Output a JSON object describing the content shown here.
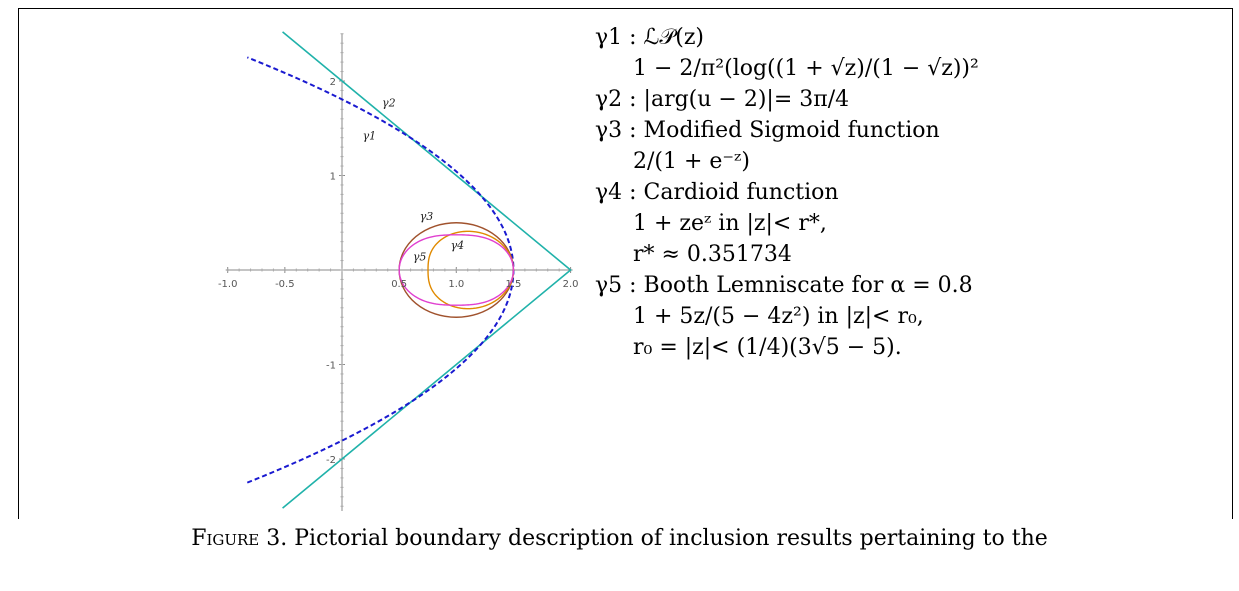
{
  "chart_data": {
    "type": "line",
    "xlim": [
      -1.0,
      2.0
    ],
    "ylim": [
      -2.5,
      2.5
    ],
    "x_ticks": [
      "-1.0",
      "-0.5",
      "0.5",
      "1.0",
      "1.5",
      "2.0"
    ],
    "x_tick_values": [
      -1.0,
      -0.5,
      0.5,
      1.0,
      1.5,
      2.0
    ],
    "y_ticks": [
      "2",
      "1",
      "-1",
      "-2"
    ],
    "y_tick_values": [
      2,
      1,
      -1,
      -2
    ],
    "grid": false,
    "series": [
      {
        "name": "γ1",
        "color": "#1a1ad0",
        "style": "dashed",
        "description_points": [
          [
            1.5,
            0
          ],
          [
            1.0,
            1.05
          ],
          [
            0.0,
            1.9
          ],
          [
            -0.6,
            2.18
          ],
          [
            1.0,
            -1.05
          ],
          [
            0.0,
            -1.9
          ],
          [
            -0.6,
            -2.18
          ]
        ]
      },
      {
        "name": "γ2",
        "color": "#20b2aa",
        "style": "solid",
        "points": [
          [
            -0.3,
            2.3
          ],
          [
            2.0,
            0
          ],
          [
            -0.3,
            -2.3
          ]
        ]
      },
      {
        "name": "γ3",
        "color": "#a0522d",
        "style": "solid",
        "center": [
          1.0,
          0
        ],
        "radius_x": 0.5,
        "radius_y": 0.5
      },
      {
        "name": "γ4",
        "color": "#e08a00",
        "style": "solid",
        "points_sample": [
          [
            0.63,
            0
          ],
          [
            1.0,
            0.34
          ],
          [
            1.48,
            0
          ]
        ]
      },
      {
        "name": "γ5",
        "color": "#e040d0",
        "style": "solid",
        "points_sample": [
          [
            0.56,
            0
          ],
          [
            1.0,
            0.3
          ],
          [
            1.44,
            0
          ]
        ]
      }
    ],
    "curve_labels": [
      "γ2",
      "γ1",
      "γ3",
      "γ4",
      "γ5"
    ]
  },
  "legend": {
    "g1_head": "γ1 : ℒ𝒫(z)",
    "g1_formula": "1 − 2/π²(log((1 + √z)/(1 − √z))²",
    "g2_head": "γ2 : |arg(u − 2)|= 3π/4",
    "g3_head": "γ3 : Modified Sigmoid function",
    "g3_formula": "2/(1 + e⁻ᶻ)",
    "g4_head": "γ4 : Cardioid function",
    "g4_formula": "1 + zeᶻ in |z|< r*,",
    "g4_r": "r* ≈ 0.351734",
    "g5_head": "γ5 : Booth Lemniscate for α = 0.8",
    "g5_formula": "1 + 5z/(5 − 4z²) in |z|< r₀,",
    "g5_r": "r₀ = |z|< (1/4)(3√5 − 5)."
  },
  "caption": {
    "label": "Figure 3.",
    "text": "Pictorial boundary description of inclusion results pertaining to the"
  }
}
